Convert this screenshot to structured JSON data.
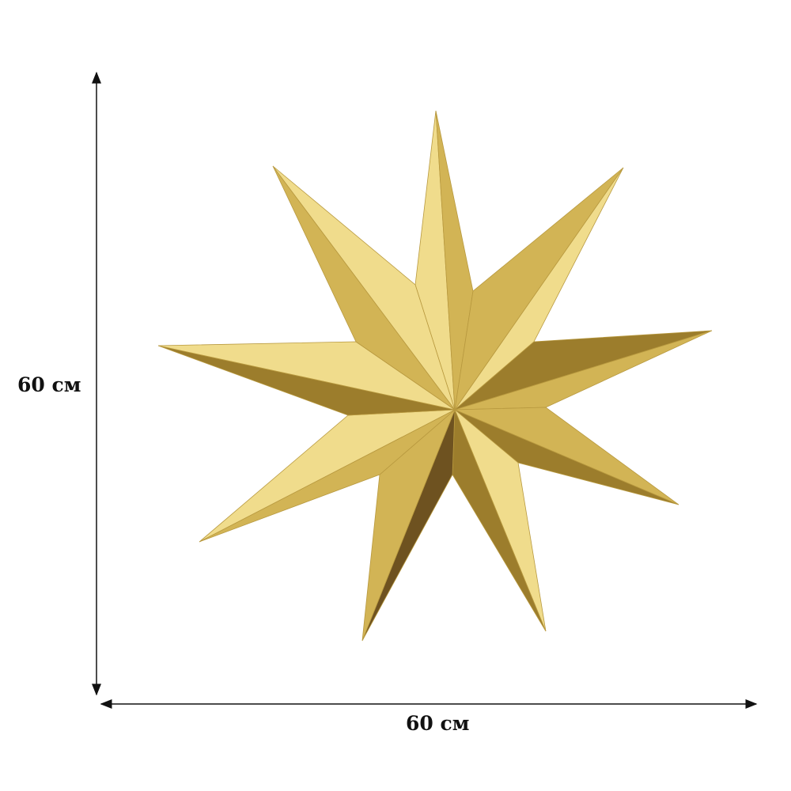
{
  "dimensions": {
    "height_label": "60 см",
    "width_label": "60 см"
  },
  "product": {
    "icon": "nine-point-star",
    "points": 9,
    "colors": {
      "gold_light": "#f0dc8c",
      "gold_mid": "#d2b455",
      "gold_dark": "#9c7d2c",
      "gold_shadow": "#6e5220"
    }
  },
  "colors": {
    "background": "#ffffff",
    "dimension_line": "#111111"
  }
}
